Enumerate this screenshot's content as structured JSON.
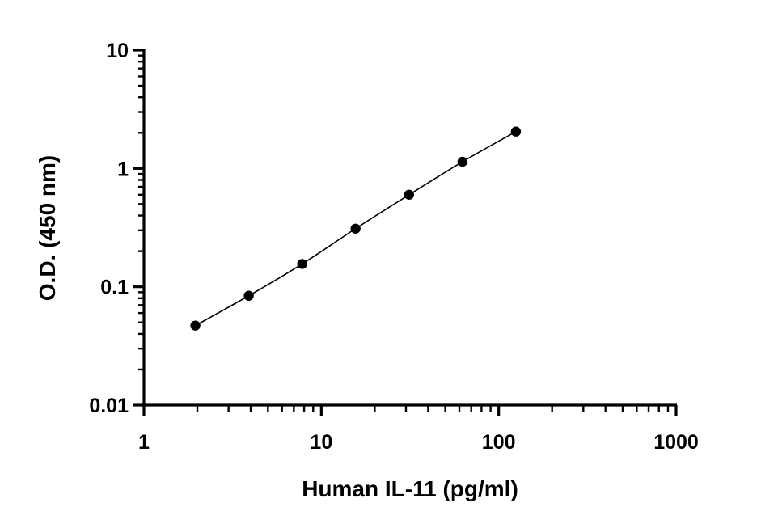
{
  "chart_data": {
    "type": "scatter",
    "title": "",
    "xlabel": "Human IL-11 (pg/ml)",
    "ylabel": "O.D. (450 nm)",
    "xscale": "log",
    "yscale": "log",
    "xlim": [
      1,
      1000
    ],
    "ylim": [
      0.01,
      10
    ],
    "xticks": [
      1,
      10,
      100,
      1000
    ],
    "yticks": [
      0.01,
      0.1,
      1,
      10
    ],
    "xtick_labels": [
      "1",
      "10",
      "100",
      "1000"
    ],
    "ytick_labels": [
      "0.01",
      "0.1",
      "1",
      "10"
    ],
    "grid": false,
    "legend": "none",
    "series": [
      {
        "x": [
          1.95,
          3.9,
          7.8,
          15.6,
          31.25,
          62.5,
          125
        ],
        "y": [
          0.047,
          0.084,
          0.156,
          0.31,
          0.6,
          1.14,
          2.05
        ],
        "fit_curve": true,
        "color": "#000000"
      }
    ]
  }
}
